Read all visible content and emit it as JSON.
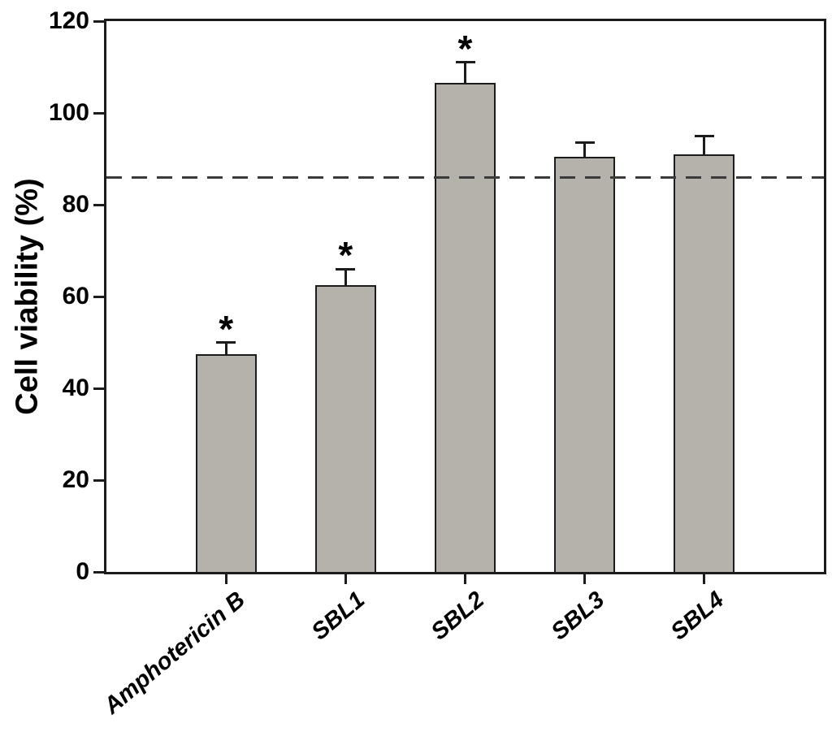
{
  "figure": {
    "significance_marker": "*"
  },
  "chart_data": {
    "type": "bar",
    "title": "",
    "xlabel": "",
    "ylabel": "Cell viability (%)",
    "categories": [
      "Amphotericin B",
      "SBL1",
      "SBL2",
      "SBL3",
      "SBL4"
    ],
    "values": [
      47.5,
      62.5,
      106.5,
      90.5,
      91
    ],
    "error_bars": [
      2.5,
      3.5,
      4.5,
      3,
      4
    ],
    "significant": [
      true,
      true,
      true,
      false,
      false
    ],
    "reference_line_y": 86,
    "reference_line_style": "dashed",
    "ylim": [
      0,
      120
    ],
    "yticks": [
      "0",
      "20",
      "40",
      "60",
      "80",
      "100",
      "120"
    ],
    "grid": false,
    "legend": "none",
    "bar_color": "#b4b2aa",
    "bar_border_color": "#1c1c1c",
    "axis_color": "#1c1c1c",
    "reference_line_color": "#3a3a3a"
  }
}
